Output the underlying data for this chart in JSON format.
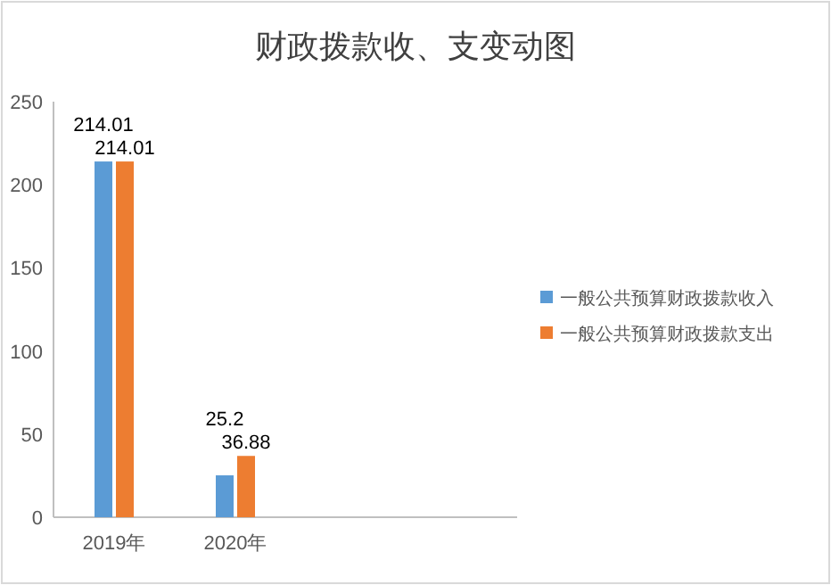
{
  "chart_data": {
    "type": "bar",
    "title": "财政拨款收、支变动图",
    "categories": [
      "2019年",
      "2020年"
    ],
    "series": [
      {
        "name": "一般公共预算财政拨款收入",
        "color": "#5b9bd5",
        "values": [
          214.01,
          25.2
        ]
      },
      {
        "name": "一般公共预算财政拨款支出",
        "color": "#ed7d31",
        "values": [
          214.01,
          36.88
        ]
      }
    ],
    "ylim": [
      0,
      250
    ],
    "yticks": [
      0,
      50,
      100,
      150,
      200,
      250
    ],
    "grid": false,
    "legend": "right",
    "data_labels": true
  }
}
